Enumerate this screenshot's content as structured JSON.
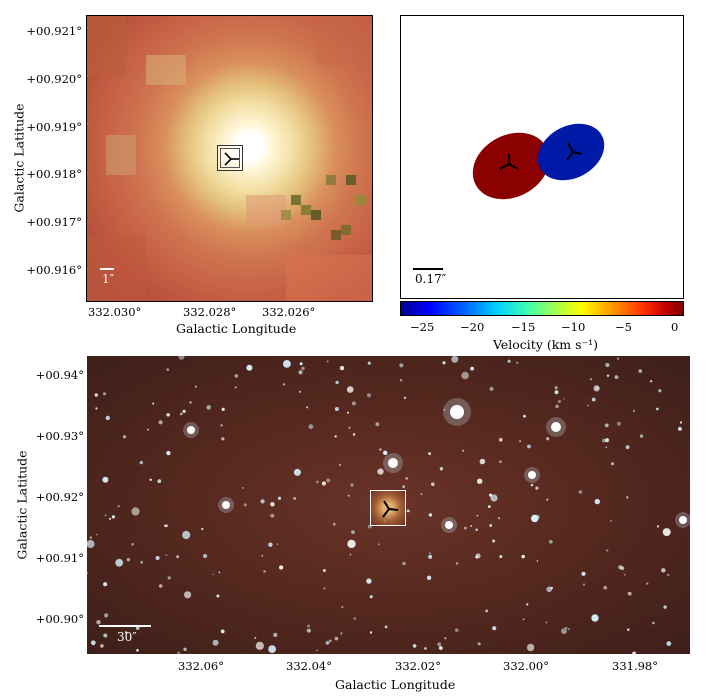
{
  "panel_a": {
    "y_ticks": [
      "+00.921°",
      "+00.920°",
      "+00.919°",
      "+00.918°",
      "+00.917°",
      "+00.916°"
    ],
    "x_ticks": [
      "332.030°",
      "332.028°",
      "332.026°"
    ],
    "y_title": "Galactic Latitude",
    "x_title": "Galactic Longitude",
    "scale_label": "1″"
  },
  "panel_b": {
    "scale_label": "0.17″",
    "colorbar_ticks": [
      "−25",
      "−20",
      "−15",
      "−10",
      "−5",
      "0"
    ],
    "colorbar_title": "Velocity (km s⁻¹)",
    "colorbar_range": [
      -26.5,
      1.5
    ],
    "components": [
      {
        "color": "#8b0000",
        "velocity": -1
      },
      {
        "color": "#001aa8",
        "velocity": -26
      }
    ]
  },
  "panel_c": {
    "y_ticks": [
      "+00.94°",
      "+00.93°",
      "+00.92°",
      "+00.91°",
      "+00.90°"
    ],
    "x_ticks": [
      "332.06°",
      "332.04°",
      "332.02°",
      "332.00°",
      "331.98°"
    ],
    "y_title": "Galactic Latitude",
    "x_title": "Galactic Longitude",
    "scale_label": "30″"
  },
  "colors": {
    "bg_red": "#5a2a22",
    "star": "#d8f4ff"
  }
}
